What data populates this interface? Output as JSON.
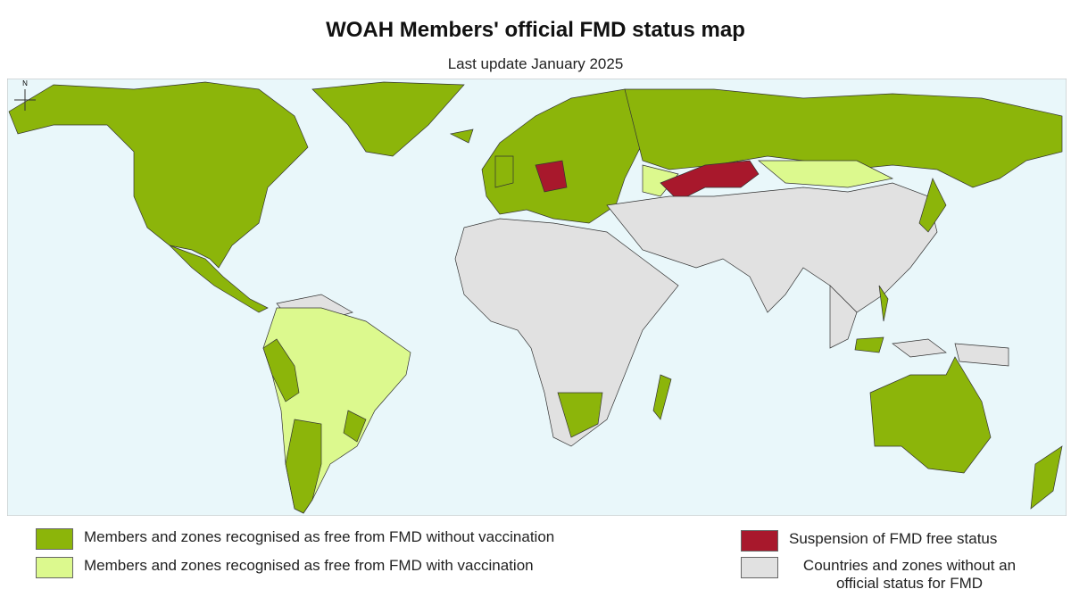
{
  "header": {
    "title": "WOAH Members' official FMD status map",
    "subtitle": "Last update January 2025"
  },
  "map": {
    "compass_label": "N"
  },
  "legend": [
    {
      "label": "Members and zones recognised as free from FMD without vaccination",
      "color": "#8cb50a"
    },
    {
      "label": "Members and zones recognised as free from FMD with vaccination",
      "color": "#dcf98e"
    },
    {
      "label": "Suspension of FMD free status",
      "color": "#a8182c"
    },
    {
      "label": "Countries and zones without an official status for FMD",
      "color": "#e1e1e1"
    }
  ]
}
